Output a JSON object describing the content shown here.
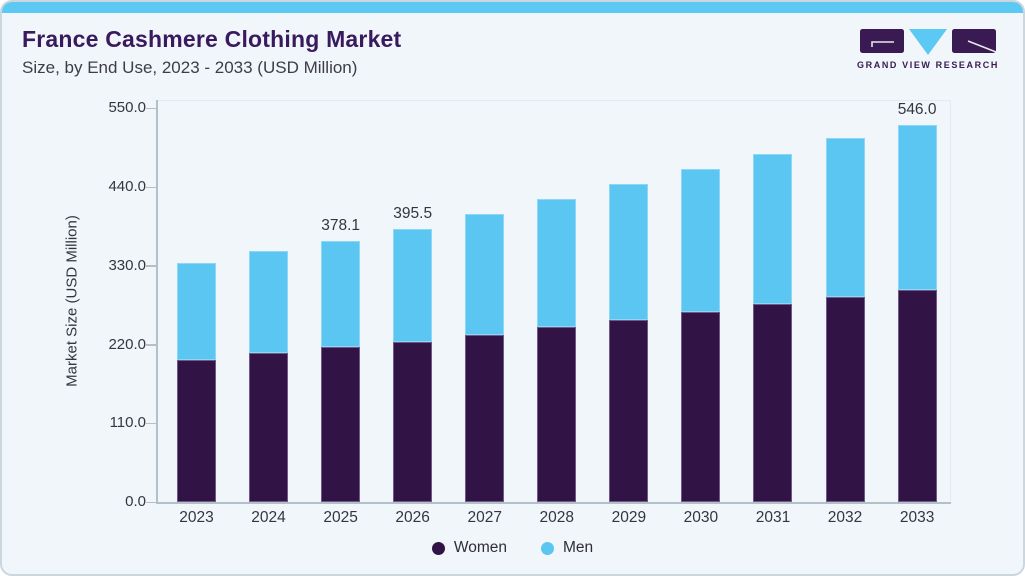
{
  "header": {
    "title": "France Cashmere Clothing Market",
    "subtitle": "Size, by End Use, 2023 - 2033 (USD Million)"
  },
  "logo": {
    "name": "GRAND VIEW RESEARCH"
  },
  "chart_data": {
    "type": "bar",
    "stacked": true,
    "title": "France Cashmere Clothing Market Size, by End Use, 2023 - 2033 (USD Million)",
    "categories": [
      "2023",
      "2024",
      "2025",
      "2026",
      "2027",
      "2028",
      "2029",
      "2030",
      "2031",
      "2032",
      "2033"
    ],
    "series": [
      {
        "name": "Women",
        "color": "#321345",
        "values": [
          206.0,
          216.0,
          224.2,
          231.9,
          242.4,
          253.6,
          263.3,
          275.3,
          285.9,
          296.0,
          306.7
        ]
      },
      {
        "name": "Men",
        "color": "#5bc6f2",
        "values": [
          140.5,
          147.6,
          153.9,
          163.6,
          173.7,
          184.2,
          196.8,
          206.0,
          218.1,
          230.1,
          239.3
        ]
      }
    ],
    "totals": [
      346.5,
      363.6,
      378.1,
      395.5,
      416.1,
      437.8,
      460.1,
      481.3,
      504.0,
      526.1,
      546.0
    ],
    "bar_total_labels": [
      "",
      "",
      "378.1",
      "395.5",
      "",
      "",
      "",
      "",
      "",
      "",
      "546.0"
    ],
    "xlabel": "",
    "ylabel": "Market Size (USD Million)",
    "yticks": [
      "0.0",
      "110.0",
      "220.0",
      "330.0",
      "440.0",
      "550.0"
    ],
    "ylim": [
      0,
      550
    ],
    "grid": false,
    "legend_position": "bottom"
  },
  "legend": {
    "items": [
      {
        "label": "Women",
        "color": "#321345"
      },
      {
        "label": "Men",
        "color": "#5bc6f2"
      }
    ]
  },
  "colors": {
    "accent_strip": "#5cc9f4",
    "card_background": "#f0f6fa",
    "title_text": "#3a1a5e",
    "body_text": "#36353f",
    "axis_line": "#b3bfc9"
  }
}
